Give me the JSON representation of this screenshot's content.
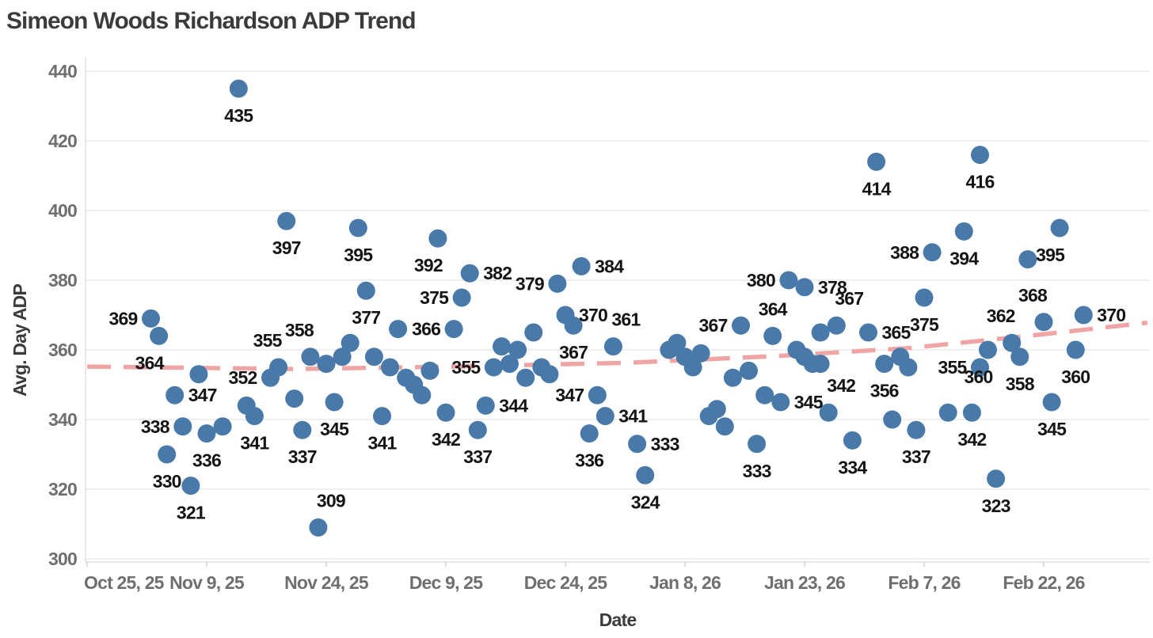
{
  "chart_data": {
    "type": "scatter",
    "title": "Simeon Woods Richardson ADP Trend",
    "xlabel": "Date",
    "ylabel": "Avg. Day ADP",
    "grid": true,
    "legend": false,
    "marker_color": "#4879a9",
    "label_color": "#141414",
    "tick_color": "#6f6f6f",
    "ylim": [
      299,
      445
    ],
    "y_ticks": [
      300,
      320,
      340,
      360,
      380,
      400,
      420,
      440
    ],
    "x_ticks": [
      {
        "label": "Oct 25, 25",
        "date": "2025-10-25"
      },
      {
        "label": "Nov 9, 25",
        "date": "2025-11-09"
      },
      {
        "label": "Nov 24, 25",
        "date": "2025-11-24"
      },
      {
        "label": "Dec 9, 25",
        "date": "2025-12-09"
      },
      {
        "label": "Dec 24, 25",
        "date": "2025-12-24"
      },
      {
        "label": "Jan 8, 26",
        "date": "2026-01-08"
      },
      {
        "label": "Jan 23, 26",
        "date": "2026-01-23"
      },
      {
        "label": "Feb 7, 26",
        "date": "2026-02-07"
      },
      {
        "label": "Feb 22, 26",
        "date": "2026-02-22"
      }
    ],
    "trend": {
      "style": "dashed",
      "color": "#f0a5a5",
      "points": [
        {
          "date": "2025-10-25",
          "adp": 355.2
        },
        {
          "date": "2025-11-20",
          "adp": 354.5
        },
        {
          "date": "2025-12-10",
          "adp": 355.2
        },
        {
          "date": "2026-01-01",
          "adp": 356.3
        },
        {
          "date": "2026-01-20",
          "adp": 358.3
        },
        {
          "date": "2026-02-05",
          "adp": 360.5
        },
        {
          "date": "2026-02-20",
          "adp": 364.0
        },
        {
          "date": "2026-03-07",
          "adp": 367.8
        }
      ]
    },
    "points": [
      {
        "date": "2025-11-02",
        "adp": 369,
        "label": "369",
        "label_pos": "left"
      },
      {
        "date": "2025-11-03",
        "adp": 364,
        "label": "364",
        "label_pos": "below-left"
      },
      {
        "date": "2025-11-04",
        "adp": 330,
        "label": "330",
        "label_pos": "below"
      },
      {
        "date": "2025-11-05",
        "adp": 347,
        "label": "347",
        "label_pos": "right"
      },
      {
        "date": "2025-11-06",
        "adp": 338,
        "label": "338",
        "label_pos": "left"
      },
      {
        "date": "2025-11-07",
        "adp": 321,
        "label": "321",
        "label_pos": "below"
      },
      {
        "date": "2025-11-08",
        "adp": 353,
        "label": null
      },
      {
        "date": "2025-11-09",
        "adp": 336,
        "label": "336",
        "label_pos": "below"
      },
      {
        "date": "2025-11-11",
        "adp": 338,
        "label": null
      },
      {
        "date": "2025-11-13",
        "adp": 435,
        "label": "435",
        "label_pos": "below"
      },
      {
        "date": "2025-11-14",
        "adp": 344,
        "label": null
      },
      {
        "date": "2025-11-15",
        "adp": 341,
        "label": "341",
        "label_pos": "below"
      },
      {
        "date": "2025-11-17",
        "adp": 352,
        "label": "352",
        "label_pos": "left"
      },
      {
        "date": "2025-11-18",
        "adp": 355,
        "label": "355",
        "label_pos": "above-left"
      },
      {
        "date": "2025-11-19",
        "adp": 397,
        "label": "397",
        "label_pos": "below"
      },
      {
        "date": "2025-11-20",
        "adp": 346,
        "label": null
      },
      {
        "date": "2025-11-21",
        "adp": 337,
        "label": "337",
        "label_pos": "below"
      },
      {
        "date": "2025-11-22",
        "adp": 358,
        "label": "358",
        "label_pos": "above-left"
      },
      {
        "date": "2025-11-23",
        "adp": 309,
        "label": "309",
        "label_pos": "above-right"
      },
      {
        "date": "2025-11-24",
        "adp": 356,
        "label": null
      },
      {
        "date": "2025-11-25",
        "adp": 345,
        "label": "345",
        "label_pos": "below"
      },
      {
        "date": "2025-11-26",
        "adp": 358,
        "label": null
      },
      {
        "date": "2025-11-27",
        "adp": 362,
        "label": null
      },
      {
        "date": "2025-11-28",
        "adp": 395,
        "label": "395",
        "label_pos": "below"
      },
      {
        "date": "2025-11-29",
        "adp": 377,
        "label": "377",
        "label_pos": "below"
      },
      {
        "date": "2025-11-30",
        "adp": 358,
        "label": null
      },
      {
        "date": "2025-12-01",
        "adp": 341,
        "label": "341",
        "label_pos": "below"
      },
      {
        "date": "2025-12-02",
        "adp": 355,
        "label": null
      },
      {
        "date": "2025-12-03",
        "adp": 366,
        "label": null
      },
      {
        "date": "2025-12-04",
        "adp": 352,
        "label": null
      },
      {
        "date": "2025-12-05",
        "adp": 350,
        "label": null
      },
      {
        "date": "2025-12-06",
        "adp": 347,
        "label": null
      },
      {
        "date": "2025-12-07",
        "adp": 354,
        "label": null
      },
      {
        "date": "2025-12-08",
        "adp": 392,
        "label": "392",
        "label_pos": "below-left"
      },
      {
        "date": "2025-12-09",
        "adp": 342,
        "label": "342",
        "label_pos": "below"
      },
      {
        "date": "2025-12-10",
        "adp": 366,
        "label": "366",
        "label_pos": "left"
      },
      {
        "date": "2025-12-11",
        "adp": 375,
        "label": "375",
        "label_pos": "left"
      },
      {
        "date": "2025-12-12",
        "adp": 382,
        "label": "382",
        "label_pos": "right"
      },
      {
        "date": "2025-12-13",
        "adp": 337,
        "label": "337",
        "label_pos": "below"
      },
      {
        "date": "2025-12-14",
        "adp": 344,
        "label": "344",
        "label_pos": "right"
      },
      {
        "date": "2025-12-15",
        "adp": 355,
        "label": "355",
        "label_pos": "left"
      },
      {
        "date": "2025-12-16",
        "adp": 361,
        "label": null
      },
      {
        "date": "2025-12-17",
        "adp": 356,
        "label": null
      },
      {
        "date": "2025-12-18",
        "adp": 360,
        "label": null
      },
      {
        "date": "2025-12-19",
        "adp": 352,
        "label": null
      },
      {
        "date": "2025-12-20",
        "adp": 365,
        "label": null
      },
      {
        "date": "2025-12-21",
        "adp": 355,
        "label": null
      },
      {
        "date": "2025-12-22",
        "adp": 353,
        "label": null
      },
      {
        "date": "2025-12-23",
        "adp": 379,
        "label": "379",
        "label_pos": "left"
      },
      {
        "date": "2025-12-24",
        "adp": 370,
        "label": "370",
        "label_pos": "right"
      },
      {
        "date": "2025-12-25",
        "adp": 367,
        "label": "367",
        "label_pos": "below"
      },
      {
        "date": "2025-12-26",
        "adp": 384,
        "label": "384",
        "label_pos": "right"
      },
      {
        "date": "2025-12-27",
        "adp": 336,
        "label": "336",
        "label_pos": "below"
      },
      {
        "date": "2025-12-28",
        "adp": 347,
        "label": "347",
        "label_pos": "left"
      },
      {
        "date": "2025-12-29",
        "adp": 341,
        "label": "341",
        "label_pos": "right"
      },
      {
        "date": "2025-12-30",
        "adp": 361,
        "label": "361",
        "label_pos": "above-right"
      },
      {
        "date": "2026-01-02",
        "adp": 333,
        "label": "333",
        "label_pos": "right"
      },
      {
        "date": "2026-01-03",
        "adp": 324,
        "label": "324",
        "label_pos": "below"
      },
      {
        "date": "2026-01-06",
        "adp": 360,
        "label": null
      },
      {
        "date": "2026-01-07",
        "adp": 362,
        "label": null
      },
      {
        "date": "2026-01-08",
        "adp": 358,
        "label": null
      },
      {
        "date": "2026-01-09",
        "adp": 355,
        "label": null
      },
      {
        "date": "2026-01-10",
        "adp": 359,
        "label": null
      },
      {
        "date": "2026-01-11",
        "adp": 341,
        "label": null
      },
      {
        "date": "2026-01-12",
        "adp": 343,
        "label": null
      },
      {
        "date": "2026-01-13",
        "adp": 338,
        "label": null
      },
      {
        "date": "2026-01-14",
        "adp": 352,
        "label": null
      },
      {
        "date": "2026-01-15",
        "adp": 367,
        "label": "367",
        "label_pos": "left"
      },
      {
        "date": "2026-01-16",
        "adp": 354,
        "label": null
      },
      {
        "date": "2026-01-17",
        "adp": 333,
        "label": "333",
        "label_pos": "below"
      },
      {
        "date": "2026-01-18",
        "adp": 347,
        "label": null
      },
      {
        "date": "2026-01-19",
        "adp": 364,
        "label": "364",
        "label_pos": "above"
      },
      {
        "date": "2026-01-20",
        "adp": 345,
        "label": "345",
        "label_pos": "right"
      },
      {
        "date": "2026-01-21",
        "adp": 380,
        "label": "380",
        "label_pos": "left"
      },
      {
        "date": "2026-01-22",
        "adp": 360,
        "label": null
      },
      {
        "date": "2026-01-23",
        "adp": 358,
        "label": null
      },
      {
        "date": "2026-01-23",
        "adp": 378,
        "label": "378",
        "label_pos": "right"
      },
      {
        "date": "2026-01-24",
        "adp": 356,
        "label": null
      },
      {
        "date": "2026-01-25",
        "adp": 365,
        "label": null
      },
      {
        "date": "2026-01-25",
        "adp": 356,
        "label": null
      },
      {
        "date": "2026-01-26",
        "adp": 342,
        "label": "342",
        "label_pos": "above-right"
      },
      {
        "date": "2026-01-27",
        "adp": 367,
        "label": "367",
        "label_pos": "above-right"
      },
      {
        "date": "2026-01-29",
        "adp": 334,
        "label": "334",
        "label_pos": "below"
      },
      {
        "date": "2026-01-31",
        "adp": 365,
        "label": "365",
        "label_pos": "right"
      },
      {
        "date": "2026-02-01",
        "adp": 414,
        "label": "414",
        "label_pos": "below"
      },
      {
        "date": "2026-02-02",
        "adp": 356,
        "label": "356",
        "label_pos": "below"
      },
      {
        "date": "2026-02-03",
        "adp": 340,
        "label": null
      },
      {
        "date": "2026-02-04",
        "adp": 358,
        "label": null
      },
      {
        "date": "2026-02-05",
        "adp": 355,
        "label": null
      },
      {
        "date": "2026-02-06",
        "adp": 337,
        "label": "337",
        "label_pos": "below"
      },
      {
        "date": "2026-02-07",
        "adp": 375,
        "label": "375",
        "label_pos": "below"
      },
      {
        "date": "2026-02-08",
        "adp": 388,
        "label": "388",
        "label_pos": "left"
      },
      {
        "date": "2026-02-10",
        "adp": 342,
        "label": null
      },
      {
        "date": "2026-02-12",
        "adp": 394,
        "label": "394",
        "label_pos": "below"
      },
      {
        "date": "2026-02-13",
        "adp": 342,
        "label": "342",
        "label_pos": "below"
      },
      {
        "date": "2026-02-14",
        "adp": 355,
        "label": "355",
        "label_pos": "left"
      },
      {
        "date": "2026-02-14",
        "adp": 416,
        "label": "416",
        "label_pos": "below"
      },
      {
        "date": "2026-02-15",
        "adp": 360,
        "label": "360",
        "label_pos": "below-left"
      },
      {
        "date": "2026-02-16",
        "adp": 323,
        "label": "323",
        "label_pos": "below"
      },
      {
        "date": "2026-02-18",
        "adp": 362,
        "label": "362",
        "label_pos": "above-left"
      },
      {
        "date": "2026-02-19",
        "adp": 358,
        "label": "358",
        "label_pos": "below"
      },
      {
        "date": "2026-02-20",
        "adp": 386,
        "label": null
      },
      {
        "date": "2026-02-22",
        "adp": 368,
        "label": "368",
        "label_pos": "above-left"
      },
      {
        "date": "2026-02-23",
        "adp": 345,
        "label": "345",
        "label_pos": "below"
      },
      {
        "date": "2026-02-24",
        "adp": 395,
        "label": "395",
        "label_pos": "below-left"
      },
      {
        "date": "2026-02-26",
        "adp": 360,
        "label": "360",
        "label_pos": "below"
      },
      {
        "date": "2026-02-27",
        "adp": 370,
        "label": "370",
        "label_pos": "right"
      }
    ]
  }
}
